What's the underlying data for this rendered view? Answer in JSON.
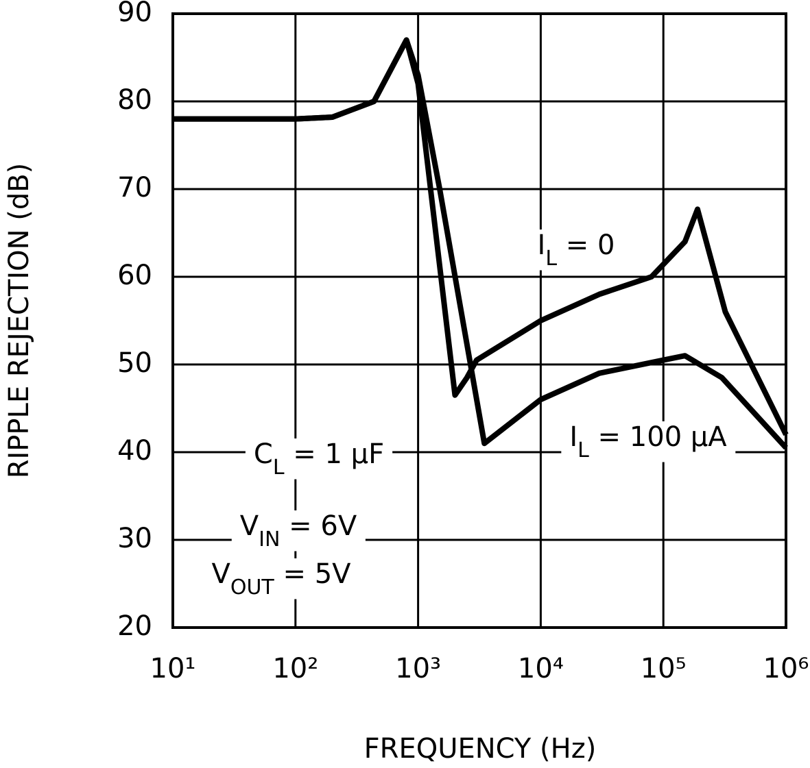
{
  "chart_data": {
    "type": "line",
    "xlabel": "FREQUENCY (Hz)",
    "ylabel": "RIPPLE REJECTION (dB)",
    "log_x": true,
    "grid": true,
    "xlim": [
      10,
      1000000
    ],
    "xticks": [
      {
        "value": 10,
        "label": "10¹"
      },
      {
        "value": 100,
        "label": "10²"
      },
      {
        "value": 1000,
        "label": "10³"
      },
      {
        "value": 10000,
        "label": "10⁴"
      },
      {
        "value": 100000,
        "label": "10⁵"
      },
      {
        "value": 1000000,
        "label": "10⁶"
      }
    ],
    "ylim": [
      20,
      90
    ],
    "yticks": [
      20,
      30,
      40,
      50,
      60,
      70,
      80,
      90
    ],
    "series": [
      {
        "color": "#000000",
        "x": [
          10,
          100,
          200,
          437,
          803,
          1000,
          2000,
          2500,
          3000,
          10000,
          30000,
          80000,
          150000,
          190000,
          320000,
          1000000
        ],
        "values": [
          78,
          78,
          78.2,
          80,
          87,
          82,
          46.5,
          48.5,
          50.5,
          55,
          58,
          60,
          64,
          67.7,
          56,
          42
        ]
      },
      {
        "color": "#000000",
        "x": [
          10,
          100,
          200,
          437,
          803,
          1000,
          1500,
          3470,
          10000,
          30000,
          100000,
          150000,
          300000,
          1000000
        ],
        "values": [
          78,
          78,
          78.2,
          80,
          87,
          83,
          70,
          41,
          46,
          49,
          50.5,
          51,
          48.5,
          40.5
        ]
      }
    ],
    "annotations": [
      {
        "base": "I",
        "sub": "L",
        "tail": " = 0"
      },
      {
        "base": "I",
        "sub": "L",
        "tail": " = 100 µA"
      },
      {
        "base": "C",
        "sub": "L",
        "tail": " = 1 µF"
      },
      {
        "base": "V",
        "sub": "IN",
        "tail": " = 6V"
      },
      {
        "base": "V",
        "sub": "OUT",
        "tail": " = 5V"
      }
    ]
  }
}
